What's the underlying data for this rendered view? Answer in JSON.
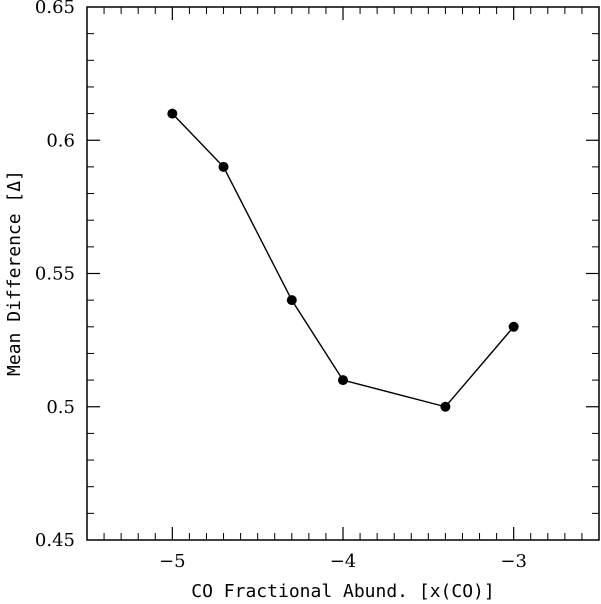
{
  "chart_data": {
    "type": "line",
    "title": "",
    "xlabel": "CO Fractional Abund. [x(CO)]",
    "ylabel": "Mean Difference [Δ]",
    "xlim": [
      -5.5,
      -2.5
    ],
    "ylim": [
      0.45,
      0.65
    ],
    "x_major_ticks": [
      -5,
      -4,
      -3
    ],
    "x_tick_labels": [
      "−5",
      "−4",
      "−3"
    ],
    "x_minor_step": 0.1,
    "y_major_ticks": [
      0.45,
      0.5,
      0.55,
      0.6,
      0.65
    ],
    "y_tick_labels": [
      "0.45",
      "0.5",
      "0.55",
      "0.6",
      "0.65"
    ],
    "y_minor_step": 0.01,
    "grid": false,
    "legend": "none",
    "series": [
      {
        "x": [
          -5.0,
          -4.7,
          -4.3,
          -4.0,
          -3.4,
          -3.0
        ],
        "y": [
          0.61,
          0.59,
          0.54,
          0.51,
          0.5,
          0.53
        ],
        "marker": "filled-circle",
        "color": "#000000"
      }
    ]
  }
}
